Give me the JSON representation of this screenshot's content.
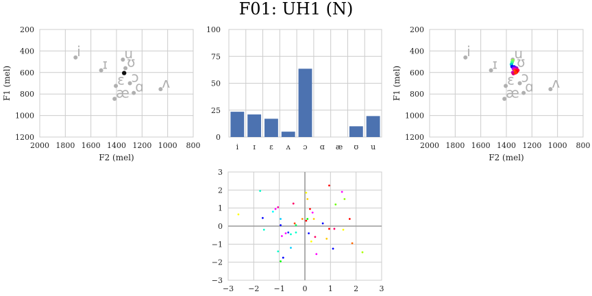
{
  "figure": {
    "title": "F01: UH1 (N)"
  },
  "chart_data": [
    {
      "type": "scatter",
      "panel": "top-left",
      "xlabel": "F2 (mel)",
      "ylabel": "F1 (mel)",
      "xlim": [
        2000,
        800
      ],
      "ylim": [
        1200,
        200
      ],
      "x_ticks": [
        "2000",
        "1800",
        "1600",
        "1400",
        "1200",
        "1000",
        "800"
      ],
      "y_ticks": [
        "200",
        "400",
        "600",
        "800",
        "1000",
        "1200"
      ],
      "grid": true,
      "reference_vowels": [
        {
          "label": "i",
          "x": 1720,
          "y": 460
        },
        {
          "label": "ɪ",
          "x": 1520,
          "y": 580
        },
        {
          "label": "u",
          "x": 1350,
          "y": 480
        },
        {
          "label": "ʊ",
          "x": 1330,
          "y": 560
        },
        {
          "label": "ɛ",
          "x": 1405,
          "y": 725
        },
        {
          "label": "ɔ",
          "x": 1295,
          "y": 700
        },
        {
          "label": "ɑ",
          "x": 1265,
          "y": 790
        },
        {
          "label": "æ",
          "x": 1415,
          "y": 845
        },
        {
          "label": "ʌ",
          "x": 1055,
          "y": 755
        }
      ],
      "current_point": {
        "x": 1340,
        "y": 605,
        "color": "#111111"
      }
    },
    {
      "type": "bar",
      "panel": "top-middle",
      "categories": [
        "i",
        "ɪ",
        "ɛ",
        "ʌ",
        "ɔ",
        "ɑ",
        "æ",
        "ʊ",
        "u"
      ],
      "values": [
        23.5,
        21,
        17,
        5,
        63.5,
        0,
        0,
        10,
        19.5
      ],
      "ylim": [
        0,
        100
      ],
      "y_ticks": [
        "0",
        "25",
        "50",
        "75",
        "100"
      ],
      "bar_color": "#4c72b0",
      "grid": true
    },
    {
      "type": "scatter",
      "panel": "top-right",
      "xlabel": "F2 (mel)",
      "ylabel": "F1 (mel)",
      "xlim": [
        2000,
        800
      ],
      "ylim": [
        1200,
        200
      ],
      "x_ticks": [
        "2000",
        "1800",
        "1600",
        "1400",
        "1200",
        "1000",
        "800"
      ],
      "y_ticks": [
        "200",
        "400",
        "600",
        "800",
        "1000",
        "1200"
      ],
      "grid": true,
      "reference_vowels": [
        {
          "label": "i",
          "x": 1720,
          "y": 460
        },
        {
          "label": "ɪ",
          "x": 1520,
          "y": 580
        },
        {
          "label": "u",
          "x": 1350,
          "y": 480
        },
        {
          "label": "ʊ",
          "x": 1330,
          "y": 560
        },
        {
          "label": "ɛ",
          "x": 1405,
          "y": 725
        },
        {
          "label": "ɔ",
          "x": 1295,
          "y": 700
        },
        {
          "label": "ɑ",
          "x": 1265,
          "y": 790
        },
        {
          "label": "æ",
          "x": 1415,
          "y": 845
        },
        {
          "label": "ʌ",
          "x": 1055,
          "y": 755
        }
      ],
      "trajectory": [
        {
          "x": 1350,
          "y": 490,
          "color": "#88ff44"
        },
        {
          "x": 1355,
          "y": 505,
          "color": "#44ff88"
        },
        {
          "x": 1360,
          "y": 525,
          "color": "#00cccc"
        },
        {
          "x": 1355,
          "y": 545,
          "color": "#0000ff"
        },
        {
          "x": 1340,
          "y": 548,
          "color": "#2222ee"
        },
        {
          "x": 1330,
          "y": 555,
          "color": "#6600ff"
        },
        {
          "x": 1320,
          "y": 560,
          "color": "#9900cc"
        },
        {
          "x": 1345,
          "y": 565,
          "color": "#aa00ff"
        },
        {
          "x": 1335,
          "y": 570,
          "color": "#ff00aa"
        },
        {
          "x": 1318,
          "y": 575,
          "color": "#ff0066"
        },
        {
          "x": 1310,
          "y": 580,
          "color": "#ff0044"
        },
        {
          "x": 1330,
          "y": 585,
          "color": "#ff2200"
        },
        {
          "x": 1340,
          "y": 590,
          "color": "#ff5500"
        },
        {
          "x": 1320,
          "y": 595,
          "color": "#ff0000"
        },
        {
          "x": 1350,
          "y": 600,
          "color": "#cc00cc"
        },
        {
          "x": 1335,
          "y": 605,
          "color": "#ff00ff"
        },
        {
          "x": 1345,
          "y": 610,
          "color": "#dd0077"
        },
        {
          "x": 1328,
          "y": 602,
          "color": "#ff3300"
        }
      ]
    },
    {
      "type": "scatter",
      "panel": "bottom-middle",
      "xlim": [
        -3,
        3
      ],
      "ylim": [
        -3,
        3
      ],
      "x_ticks": [
        "−3",
        "−2",
        "−1",
        "0",
        "1",
        "2",
        "3"
      ],
      "y_ticks": [
        "−3",
        "−2",
        "−1",
        "0",
        "1",
        "2",
        "3"
      ],
      "grid": true,
      "zero_lines": true,
      "points": [
        {
          "x": -2.6,
          "y": 0.65,
          "color": "#ffff00"
        },
        {
          "x": -1.75,
          "y": 1.95,
          "color": "#00ffcc"
        },
        {
          "x": -1.65,
          "y": 0.45,
          "color": "#0000ff"
        },
        {
          "x": -1.6,
          "y": -0.2,
          "color": "#00ffcc"
        },
        {
          "x": -1.25,
          "y": 0.8,
          "color": "#00ffff"
        },
        {
          "x": -1.15,
          "y": 0.95,
          "color": "#ff00ff"
        },
        {
          "x": -1.05,
          "y": 1.05,
          "color": "#ff00aa"
        },
        {
          "x": -1.05,
          "y": -1.4,
          "color": "#00ffcc"
        },
        {
          "x": -0.95,
          "y": 0.4,
          "color": "#00ccff"
        },
        {
          "x": -0.95,
          "y": 0.05,
          "color": "#0000ff"
        },
        {
          "x": -0.9,
          "y": -0.55,
          "color": "#ff00ff"
        },
        {
          "x": -0.95,
          "y": -1.95,
          "color": "#00ff00"
        },
        {
          "x": -0.85,
          "y": -1.75,
          "color": "#0000ff"
        },
        {
          "x": -0.75,
          "y": -0.4,
          "color": "#ff00ff"
        },
        {
          "x": -0.65,
          "y": -0.35,
          "color": "#0033ff"
        },
        {
          "x": -0.55,
          "y": -0.45,
          "color": "#00ffcc"
        },
        {
          "x": -0.55,
          "y": -1.2,
          "color": "#00ccff"
        },
        {
          "x": -0.45,
          "y": 1.25,
          "color": "#ff0066"
        },
        {
          "x": -0.4,
          "y": 0.15,
          "color": "#ff4400"
        },
        {
          "x": -0.35,
          "y": 0.05,
          "color": "#00ff66"
        },
        {
          "x": -0.35,
          "y": -0.35,
          "color": "#00ffcc"
        },
        {
          "x": -0.1,
          "y": 0.4,
          "color": "#ff8800"
        },
        {
          "x": 0.05,
          "y": 1.85,
          "color": "#ffff00"
        },
        {
          "x": 0.05,
          "y": 0.3,
          "color": "#ff0000"
        },
        {
          "x": 0.1,
          "y": 1.5,
          "color": "#ffcc00"
        },
        {
          "x": 0.1,
          "y": 0.4,
          "color": "#00ff00"
        },
        {
          "x": 0.15,
          "y": -0.4,
          "color": "#0000ff"
        },
        {
          "x": 0.2,
          "y": 0.95,
          "color": "#ff0000"
        },
        {
          "x": 0.25,
          "y": -0.85,
          "color": "#ffff00"
        },
        {
          "x": 0.3,
          "y": 0.75,
          "color": "#ff00ff"
        },
        {
          "x": 0.35,
          "y": 0.4,
          "color": "#ffcc00"
        },
        {
          "x": 0.4,
          "y": -0.6,
          "color": "#ff0066"
        },
        {
          "x": 0.45,
          "y": -1.55,
          "color": "#ff00ff"
        },
        {
          "x": 0.7,
          "y": 0.15,
          "color": "#0000ff"
        },
        {
          "x": 0.85,
          "y": -0.7,
          "color": "#ffcc00"
        },
        {
          "x": 0.95,
          "y": -0.15,
          "color": "#ff0000"
        },
        {
          "x": 0.95,
          "y": 2.25,
          "color": "#ff0000"
        },
        {
          "x": 1.1,
          "y": -1.25,
          "color": "#0000ff"
        },
        {
          "x": 1.15,
          "y": -0.15,
          "color": "#ff0066"
        },
        {
          "x": 1.2,
          "y": 1.2,
          "color": "#66ff00"
        },
        {
          "x": 1.45,
          "y": 1.9,
          "color": "#ff00ff"
        },
        {
          "x": 1.5,
          "y": -0.2,
          "color": "#ffff00"
        },
        {
          "x": 1.55,
          "y": 1.5,
          "color": "#88ff00"
        },
        {
          "x": 1.75,
          "y": 0.4,
          "color": "#ff0000"
        },
        {
          "x": 1.85,
          "y": -0.95,
          "color": "#ff6600"
        },
        {
          "x": 2.25,
          "y": -1.45,
          "color": "#aaff00"
        }
      ]
    }
  ]
}
